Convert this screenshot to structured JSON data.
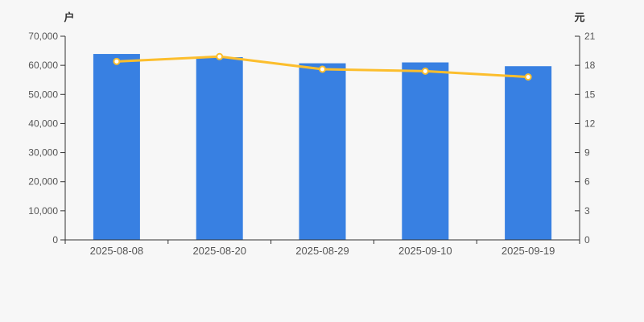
{
  "page": {
    "background_color": "#f7f7f7"
  },
  "chart_data": {
    "type": "bar",
    "subtype": "bar-line-combo",
    "title": "",
    "categories": [
      "2025-08-08",
      "2025-08-20",
      "2025-08-29",
      "2025-09-10",
      "2025-09-19"
    ],
    "series": [
      {
        "name": "bar-series",
        "type": "bar",
        "axis": "left",
        "unit": "户",
        "color": "#3880e2",
        "values": [
          63900,
          62800,
          60700,
          61000,
          59700
        ]
      },
      {
        "name": "line-series",
        "type": "line",
        "axis": "right",
        "unit": "元",
        "color": "#fcbe2d",
        "point_fill": "#ffffff",
        "values": [
          18.4,
          18.9,
          17.6,
          17.4,
          16.8
        ]
      }
    ],
    "left_axis": {
      "title": "户",
      "min": 0,
      "max": 70000,
      "step": 10000,
      "tick_labels": [
        "0",
        "10,000",
        "20,000",
        "30,000",
        "40,000",
        "50,000",
        "60,000",
        "70,000"
      ]
    },
    "right_axis": {
      "title": "元",
      "min": 0,
      "max": 21,
      "step": 3,
      "tick_labels": [
        "0",
        "3",
        "6",
        "9",
        "12",
        "15",
        "18",
        "21"
      ]
    },
    "grid": false,
    "legend": false,
    "axis_line_color": "#333333",
    "tick_label_color": "#555555"
  }
}
